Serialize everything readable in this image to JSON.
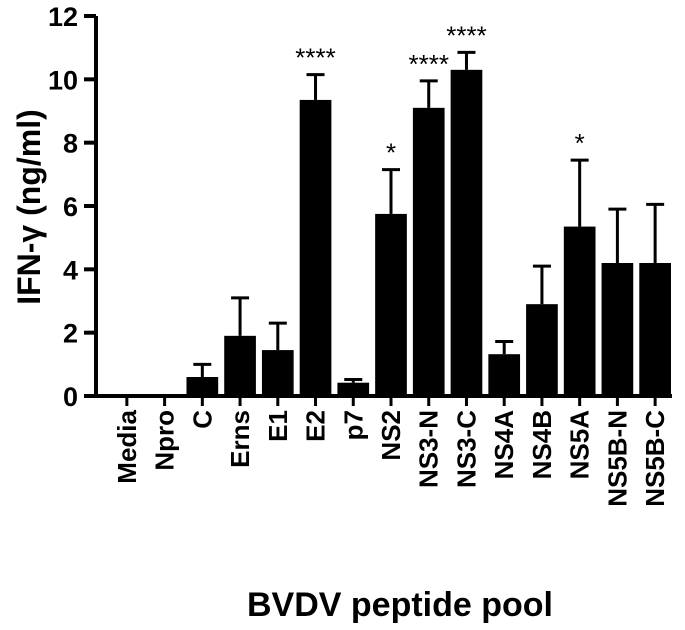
{
  "chart_data": {
    "type": "bar",
    "xlabel": "BVDV peptide pool",
    "ylabel": "IFN-γ (ng/ml)",
    "ylim": [
      0,
      12
    ],
    "yticks": [
      0,
      2,
      4,
      6,
      8,
      10,
      12
    ],
    "grid": false,
    "categories": [
      "Media",
      "Npro",
      "C",
      "Erns",
      "E1",
      "E2",
      "p7",
      "NS2",
      "NS3-N",
      "NS3-C",
      "NS4A",
      "NS4B",
      "NS5A",
      "NS5B-N",
      "NS5B-C"
    ],
    "values": [
      0.02,
      0.05,
      0.6,
      1.9,
      1.45,
      9.35,
      0.42,
      5.75,
      9.1,
      10.3,
      1.32,
      2.9,
      5.35,
      4.2,
      4.2
    ],
    "error_upper": [
      0.0,
      0.0,
      0.4,
      1.2,
      0.85,
      0.8,
      0.1,
      1.4,
      0.85,
      0.55,
      0.4,
      1.2,
      2.1,
      1.7,
      1.85
    ],
    "significance": [
      "",
      "",
      "",
      "",
      "",
      "****",
      "",
      "*",
      "****",
      "****",
      "",
      "",
      "*",
      "",
      ""
    ],
    "bar_color": "#000000"
  }
}
